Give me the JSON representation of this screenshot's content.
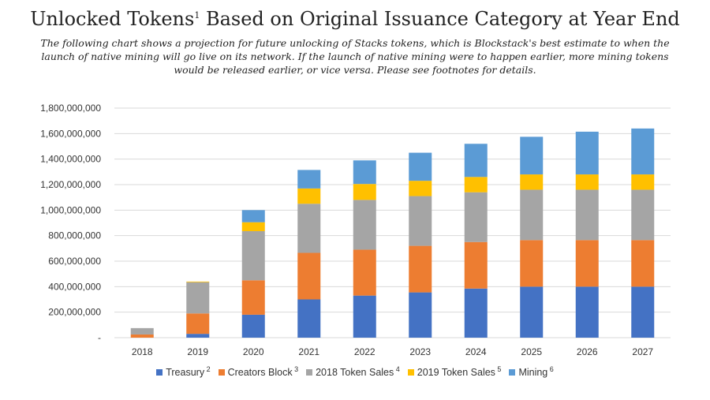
{
  "chart_data": {
    "type": "bar",
    "stacked": true,
    "title": "Unlocked Tokens",
    "title_footnote": "1",
    "title_rest": "Based on Original Issuance Category at Year End",
    "subtitle": "The following chart shows a projection for future unlocking of Stacks tokens, which is Blockstack's best estimate to when the launch of native mining will go live on its network. If the launch of native mining were to happen earlier, more mining tokens would be released earlier, or vice versa. Please see footnotes for details.",
    "categories": [
      "2018",
      "2019",
      "2020",
      "2021",
      "2022",
      "2023",
      "2024",
      "2025",
      "2026",
      "2027"
    ],
    "ylim": [
      0,
      1800000000
    ],
    "yticks": [
      {
        "value": 0,
        "label": "-"
      },
      {
        "value": 200000000,
        "label": "200,000,000"
      },
      {
        "value": 400000000,
        "label": "400,000,000"
      },
      {
        "value": 600000000,
        "label": "600,000,000"
      },
      {
        "value": 800000000,
        "label": "800,000,000"
      },
      {
        "value": 1000000000,
        "label": "1,000,000,000"
      },
      {
        "value": 1200000000,
        "label": "1,200,000,000"
      },
      {
        "value": 1400000000,
        "label": "1,400,000,000"
      },
      {
        "value": 1600000000,
        "label": "1,600,000,000"
      },
      {
        "value": 1800000000,
        "label": "1,800,000,000"
      }
    ],
    "grid": true,
    "legend_position": "bottom",
    "series": [
      {
        "name": "Treasury",
        "footnote": "2",
        "color": "#4472C4",
        "values": [
          0,
          30000000,
          180000000,
          300000000,
          330000000,
          355000000,
          385000000,
          400000000,
          400000000,
          400000000
        ]
      },
      {
        "name": "Creators Block",
        "footnote": "3",
        "color": "#ED7D31",
        "values": [
          25000000,
          160000000,
          270000000,
          365000000,
          360000000,
          365000000,
          365000000,
          365000000,
          365000000,
          365000000
        ]
      },
      {
        "name": "2018 Token Sales",
        "footnote": "4",
        "color": "#A5A5A5",
        "values": [
          50000000,
          245000000,
          385000000,
          385000000,
          390000000,
          390000000,
          390000000,
          395000000,
          395000000,
          395000000
        ]
      },
      {
        "name": "2019 Token Sales",
        "footnote": "5",
        "color": "#FFC000",
        "values": [
          0,
          5000000,
          70000000,
          120000000,
          125000000,
          120000000,
          120000000,
          120000000,
          120000000,
          120000000
        ]
      },
      {
        "name": "Mining",
        "footnote": "6",
        "color": "#5B9BD5",
        "values": [
          0,
          0,
          95000000,
          145000000,
          185000000,
          220000000,
          260000000,
          295000000,
          335000000,
          360000000
        ]
      }
    ]
  }
}
